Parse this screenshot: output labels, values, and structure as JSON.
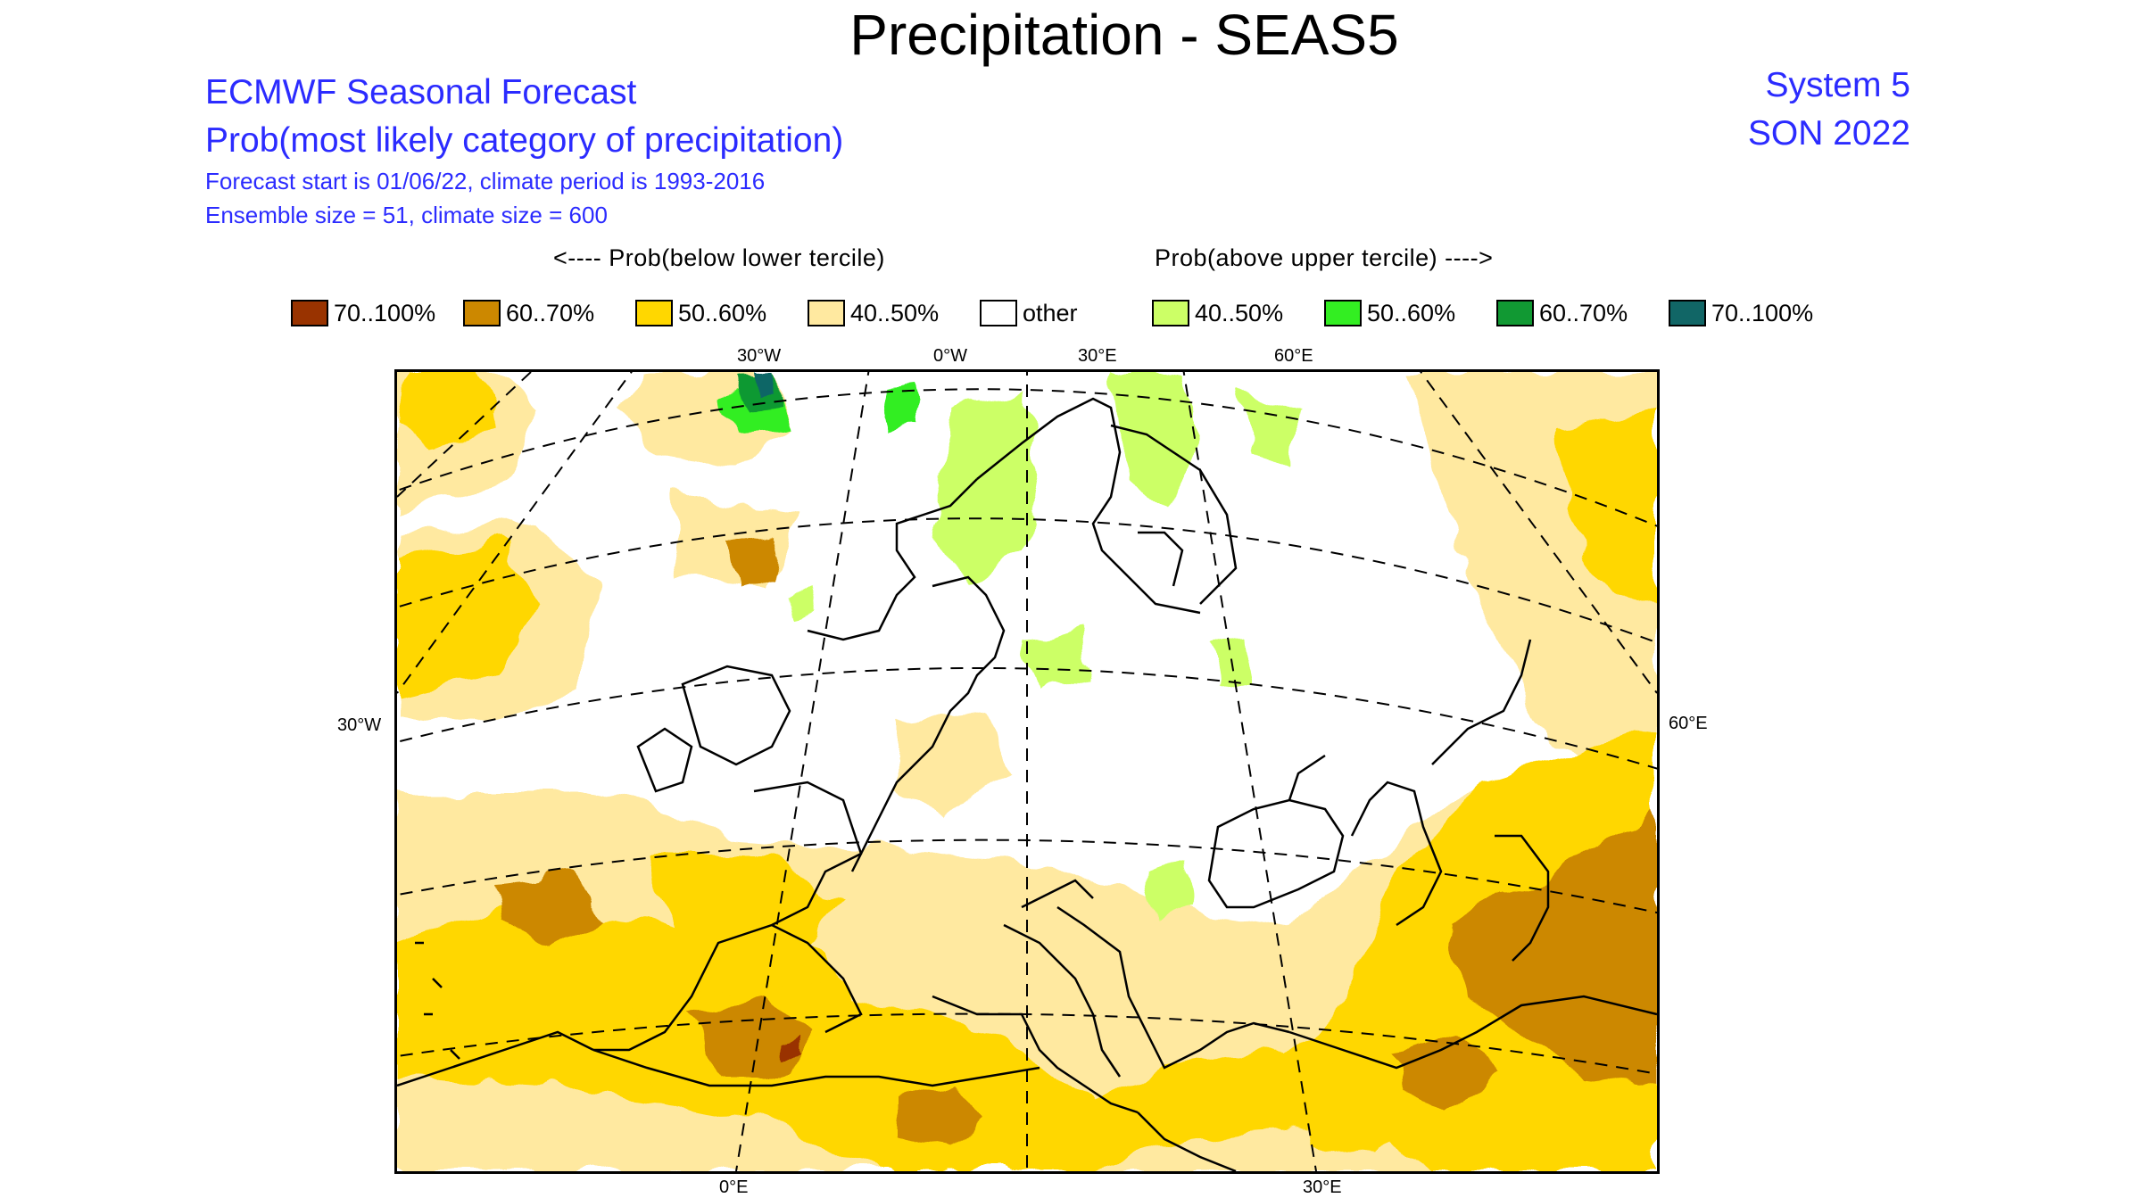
{
  "title": "Precipitation - SEAS5",
  "header": {
    "title": "ECMWF Seasonal Forecast",
    "subtitle": "Prob(most likely category of precipitation)",
    "info_line1": "Forecast start is 01/06/22, climate period is 1993-2016",
    "info_line2": "Ensemble size = 51, climate size = 600",
    "system": "System 5",
    "period": "SON 2022"
  },
  "legend": {
    "below_label": "<---- Prob(below lower tercile)",
    "above_label": "Prob(above upper tercile) ---->",
    "items": [
      {
        "label": "70..100%",
        "color": "#993300"
      },
      {
        "label": "60..70%",
        "color": "#cc8800"
      },
      {
        "label": "50..60%",
        "color": "#ffd700"
      },
      {
        "label": "40..50%",
        "color": "#ffe9a0"
      },
      {
        "label": "other",
        "color": "#ffffff"
      },
      {
        "label": "40..50%",
        "color": "#ccff66"
      },
      {
        "label": "50..60%",
        "color": "#33ee22"
      },
      {
        "label": "60..70%",
        "color": "#119933"
      },
      {
        "label": "70..100%",
        "color": "#116666"
      }
    ]
  },
  "map": {
    "top_ticks": [
      "30°W",
      "0°W",
      "30°E",
      "60°E"
    ],
    "left_tick": "30°W",
    "right_tick": "60°E",
    "bottom_ticks": [
      "0°E",
      "30°E"
    ]
  }
}
